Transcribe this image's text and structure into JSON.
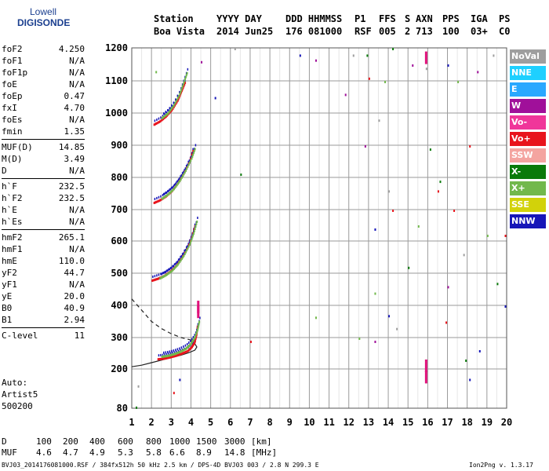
{
  "logo": {
    "line1": "Lowell",
    "line2": "DIGISONDE"
  },
  "header": {
    "row1": [
      "Station",
      "YYYY DAY",
      "DDD HHMMSS",
      "P1",
      "FFS",
      "S",
      "AXN",
      "PPS",
      "IGA",
      "PS"
    ],
    "row2": [
      "Boa Vista",
      "2014 Jun25",
      "176 081000",
      "RSF",
      "005",
      "2",
      "713",
      "100",
      "03+",
      "C0"
    ]
  },
  "params": {
    "group1": [
      [
        "foF2",
        "4.250"
      ],
      [
        "foF1",
        "N/A"
      ],
      [
        "foF1p",
        "N/A"
      ],
      [
        "foE",
        "N/A"
      ],
      [
        "foEp",
        "0.47"
      ],
      [
        "fxI",
        "4.70"
      ],
      [
        "foEs",
        "N/A"
      ],
      [
        "fmin",
        "1.35"
      ]
    ],
    "group2": [
      [
        "MUF(D)",
        "14.85"
      ],
      [
        "M(D)",
        "3.49"
      ],
      [
        "D",
        "N/A"
      ]
    ],
    "group3": [
      [
        "h`F",
        "232.5"
      ],
      [
        "h`F2",
        "232.5"
      ],
      [
        "h`E",
        "N/A"
      ],
      [
        "h`Es",
        "N/A"
      ]
    ],
    "group4": [
      [
        "hmF2",
        "265.1"
      ],
      [
        "hmF1",
        "N/A"
      ],
      [
        "hmE",
        "110.0"
      ],
      [
        "yF2",
        "44.7"
      ],
      [
        "yF1",
        "N/A"
      ],
      [
        "yE",
        "20.0"
      ],
      [
        "B0",
        "40.9"
      ],
      [
        "B1",
        "2.94"
      ]
    ],
    "group5": [
      [
        "C-level",
        "11"
      ]
    ]
  },
  "auto": {
    "line1": "Auto:",
    "line2": "Artist5",
    "line3": "500200"
  },
  "legend": [
    {
      "label": "NoVal",
      "color": "#9e9e9e"
    },
    {
      "label": "NNE",
      "color": "#1ed0ff"
    },
    {
      "label": "E",
      "color": "#2aa8ff"
    },
    {
      "label": "W",
      "color": "#a0109a"
    },
    {
      "label": "Vo-",
      "color": "#f0369a"
    },
    {
      "label": "Vo+",
      "color": "#e8141c"
    },
    {
      "label": "SSW",
      "color": "#f4a4a0"
    },
    {
      "label": "X-",
      "color": "#0a7a0a"
    },
    {
      "label": "X+",
      "color": "#72b84c"
    },
    {
      "label": "SSE",
      "color": "#d2d20a"
    },
    {
      "label": "NNW",
      "color": "#1616b8"
    }
  ],
  "footer": {
    "d_label": "D",
    "d_values": [
      "100",
      "200",
      "400",
      "600",
      "800",
      "1000",
      "1500",
      "3000"
    ],
    "d_unit": "[km]",
    "muf_label": "MUF",
    "muf_values": [
      "4.6",
      "4.7",
      "4.9",
      "5.3",
      "5.8",
      "6.6",
      "8.9",
      "14.8"
    ],
    "muf_unit": "[MHz]",
    "info": "BVJ03_2014176081000.RSF / 384fx512h 50 kHz 2.5 km / DPS-4D BVJ03 003 / 2.8 N 299.3 E",
    "version": "Ion2Png v. 1.3.17"
  },
  "chart_data": {
    "type": "scatter",
    "title": "",
    "xlabel": "",
    "ylabel": "",
    "xlim": [
      1,
      20
    ],
    "ylim": [
      80,
      1200
    ],
    "xticks": [
      1,
      2,
      3,
      4,
      5,
      6,
      7,
      8,
      9,
      10,
      11,
      12,
      13,
      14,
      15,
      16,
      17,
      18,
      19,
      20
    ],
    "yticks": [
      80,
      200,
      300,
      400,
      500,
      600,
      700,
      800,
      900,
      1000,
      1100,
      1200
    ],
    "grid": true,
    "traces": [
      {
        "name": "O-trace 1st hop",
        "color": "#e8141c",
        "points": [
          [
            2.3,
            232
          ],
          [
            2.6,
            234
          ],
          [
            2.9,
            238
          ],
          [
            3.2,
            243
          ],
          [
            3.5,
            250
          ],
          [
            3.8,
            258
          ],
          [
            4.0,
            270
          ],
          [
            4.15,
            285
          ],
          [
            4.25,
            310
          ],
          [
            4.3,
            340
          ]
        ]
      },
      {
        "name": "X-trace 1st hop",
        "color": "#72b84c",
        "points": [
          [
            2.5,
            240
          ],
          [
            2.8,
            243
          ],
          [
            3.1,
            248
          ],
          [
            3.4,
            255
          ],
          [
            3.7,
            265
          ],
          [
            3.95,
            280
          ],
          [
            4.15,
            300
          ],
          [
            4.3,
            325
          ],
          [
            4.4,
            355
          ]
        ]
      },
      {
        "name": "O-trace 2nd hop",
        "color": "#e8141c",
        "points": [
          [
            2.0,
            478
          ],
          [
            2.3,
            484
          ],
          [
            2.6,
            492
          ],
          [
            2.9,
            505
          ],
          [
            3.2,
            522
          ],
          [
            3.5,
            548
          ],
          [
            3.8,
            580
          ],
          [
            4.0,
            612
          ],
          [
            4.2,
            655
          ]
        ]
      },
      {
        "name": "X-trace 2nd hop",
        "color": "#72b84c",
        "points": [
          [
            2.4,
            485
          ],
          [
            2.7,
            495
          ],
          [
            3.0,
            508
          ],
          [
            3.3,
            528
          ],
          [
            3.6,
            555
          ],
          [
            3.9,
            590
          ],
          [
            4.1,
            625
          ],
          [
            4.3,
            670
          ]
        ]
      },
      {
        "name": "O-trace 3rd hop",
        "color": "#e8141c",
        "points": [
          [
            2.1,
            722
          ],
          [
            2.4,
            730
          ],
          [
            2.7,
            742
          ],
          [
            3.0,
            758
          ],
          [
            3.3,
            782
          ],
          [
            3.6,
            812
          ],
          [
            3.9,
            850
          ],
          [
            4.1,
            890
          ]
        ]
      },
      {
        "name": "X-trace 3rd hop",
        "color": "#72b84c",
        "points": [
          [
            2.5,
            735
          ],
          [
            2.8,
            748
          ],
          [
            3.1,
            765
          ],
          [
            3.4,
            790
          ],
          [
            3.7,
            822
          ],
          [
            4.0,
            860
          ],
          [
            4.2,
            895
          ]
        ]
      },
      {
        "name": "O-trace 4th hop",
        "color": "#e8141c",
        "points": [
          [
            2.1,
            965
          ],
          [
            2.4,
            975
          ],
          [
            2.7,
            990
          ],
          [
            3.0,
            1010
          ],
          [
            3.3,
            1040
          ],
          [
            3.5,
            1070
          ],
          [
            3.7,
            1100
          ]
        ]
      },
      {
        "name": "X-trace 4th hop",
        "color": "#72b84c",
        "points": [
          [
            2.5,
            985
          ],
          [
            2.8,
            1000
          ],
          [
            3.1,
            1025
          ],
          [
            3.4,
            1060
          ],
          [
            3.6,
            1095
          ],
          [
            3.8,
            1130
          ]
        ]
      }
    ],
    "profile_solid": [
      [
        1.0,
        207
      ],
      [
        1.5,
        212
      ],
      [
        2.0,
        220
      ],
      [
        2.5,
        228
      ],
      [
        3.0,
        236
      ],
      [
        3.5,
        244
      ],
      [
        3.9,
        252
      ],
      [
        4.2,
        260
      ],
      [
        4.3,
        270
      ],
      [
        4.2,
        280
      ],
      [
        4.0,
        290
      ]
    ],
    "profile_dashed": [
      [
        1.0,
        420
      ],
      [
        1.5,
        385
      ],
      [
        2.0,
        350
      ],
      [
        2.5,
        328
      ],
      [
        3.0,
        312
      ],
      [
        3.5,
        300
      ],
      [
        4.0,
        292
      ],
      [
        4.25,
        285
      ]
    ],
    "magenta_marks": [
      [
        4.35,
        380
      ],
      [
        4.35,
        395
      ],
      [
        15.9,
        175
      ],
      [
        15.9,
        210
      ],
      [
        15.9,
        1170
      ]
    ],
    "noise_points": [
      [
        6.2,
        1200
      ],
      [
        6.5,
        812
      ],
      [
        7.0,
        290
      ],
      [
        9.5,
        1180
      ],
      [
        10.3,
        1165
      ],
      [
        10.3,
        365
      ],
      [
        12.2,
        1180
      ],
      [
        12.9,
        1180
      ],
      [
        13.0,
        1110
      ],
      [
        13.3,
        640
      ],
      [
        13.3,
        290
      ],
      [
        13.8,
        1100
      ],
      [
        14.0,
        760
      ],
      [
        14.2,
        1200
      ],
      [
        14.2,
        700
      ],
      [
        14.0,
        370
      ],
      [
        15.2,
        1150
      ],
      [
        15.5,
        650
      ],
      [
        15.9,
        1140
      ],
      [
        16.1,
        890
      ],
      [
        16.5,
        760
      ],
      [
        17.0,
        1150
      ],
      [
        17.0,
        460
      ],
      [
        17.5,
        1100
      ],
      [
        17.8,
        560
      ],
      [
        17.9,
        230
      ],
      [
        18.1,
        900
      ],
      [
        18.1,
        170
      ],
      [
        18.5,
        1130
      ],
      [
        19.0,
        620
      ],
      [
        19.3,
        1180
      ],
      [
        19.5,
        470
      ],
      [
        19.9,
        620
      ],
      [
        19.9,
        400
      ],
      [
        12.8,
        900
      ],
      [
        13.3,
        440
      ],
      [
        14.4,
        330
      ],
      [
        16.6,
        790
      ],
      [
        17.3,
        700
      ],
      [
        18.6,
        260
      ],
      [
        11.8,
        1060
      ],
      [
        12.5,
        300
      ],
      [
        13.5,
        980
      ],
      [
        15.0,
        520
      ],
      [
        16.9,
        350
      ],
      [
        5.2,
        1050
      ],
      [
        4.5,
        1160
      ],
      [
        2.2,
        1130
      ],
      [
        1.3,
        150
      ],
      [
        1.2,
        85
      ],
      [
        3.1,
        130
      ],
      [
        3.4,
        170
      ]
    ]
  }
}
